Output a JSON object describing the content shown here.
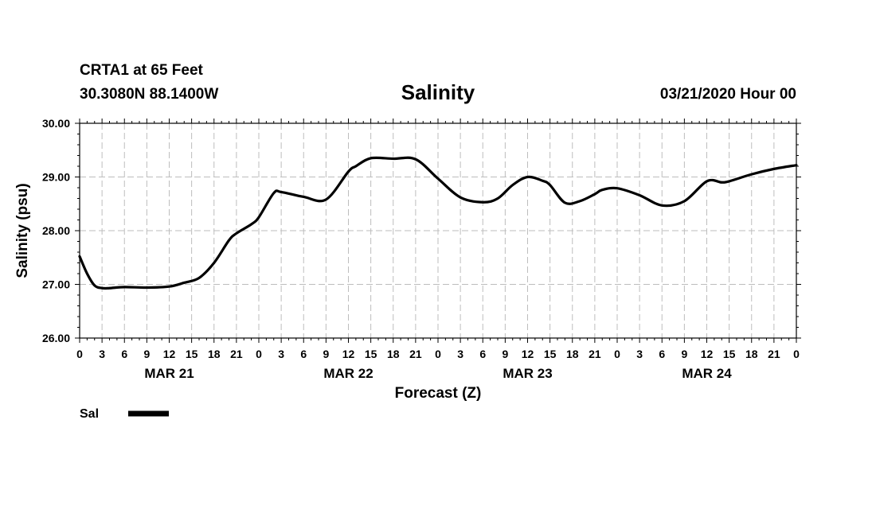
{
  "header": {
    "station": "CRTA1 at 65 Feet",
    "location": "30.3080N 88.1400W",
    "title": "Salinity",
    "issued": "03/21/2020 Hour 00"
  },
  "legend": {
    "label": "Sal"
  },
  "chart_data": {
    "type": "line",
    "title": "Salinity",
    "xlabel": "Forecast (Z)",
    "ylabel": "Salinity (psu)",
    "ylim": [
      26.0,
      30.0
    ],
    "yticks": [
      "26.00",
      "27.00",
      "28.00",
      "29.00",
      "30.00"
    ],
    "xlim_hours": [
      0,
      96
    ],
    "xtick_labels": [
      "0",
      "3",
      "6",
      "9",
      "12",
      "15",
      "18",
      "21",
      "0",
      "3",
      "6",
      "9",
      "12",
      "15",
      "18",
      "21",
      "0",
      "3",
      "6",
      "9",
      "12",
      "15",
      "18",
      "21",
      "0",
      "3",
      "6",
      "9",
      "12",
      "15",
      "18",
      "21",
      "0"
    ],
    "day_labels": [
      {
        "label": "MAR 21",
        "hour": 12
      },
      {
        "label": "MAR 22",
        "hour": 36
      },
      {
        "label": "MAR 23",
        "hour": 60
      },
      {
        "label": "MAR 24",
        "hour": 84
      }
    ],
    "grid": true,
    "legend_position": "bottom-left",
    "series": [
      {
        "name": "Sal",
        "color": "#000000",
        "x": [
          0,
          1,
          2,
          3,
          4,
          6,
          9,
          12,
          14,
          16,
          18,
          20,
          21,
          23,
          24,
          26,
          27,
          30,
          33,
          36,
          37,
          39,
          42,
          45,
          48,
          51,
          54,
          56,
          58,
          60,
          62,
          63,
          65,
          67,
          69,
          70,
          72,
          75,
          78,
          81,
          84,
          86,
          87,
          90,
          93,
          96
        ],
        "y": [
          27.52,
          27.2,
          26.98,
          26.93,
          26.93,
          26.95,
          26.94,
          26.96,
          27.03,
          27.12,
          27.4,
          27.82,
          27.95,
          28.12,
          28.25,
          28.7,
          28.72,
          28.63,
          28.58,
          29.1,
          29.2,
          29.35,
          29.34,
          29.33,
          28.97,
          28.62,
          28.53,
          28.6,
          28.85,
          29.0,
          28.93,
          28.85,
          28.52,
          28.55,
          28.68,
          28.76,
          28.79,
          28.66,
          28.47,
          28.55,
          28.92,
          28.9,
          28.92,
          29.05,
          29.15,
          29.22
        ]
      }
    ]
  }
}
